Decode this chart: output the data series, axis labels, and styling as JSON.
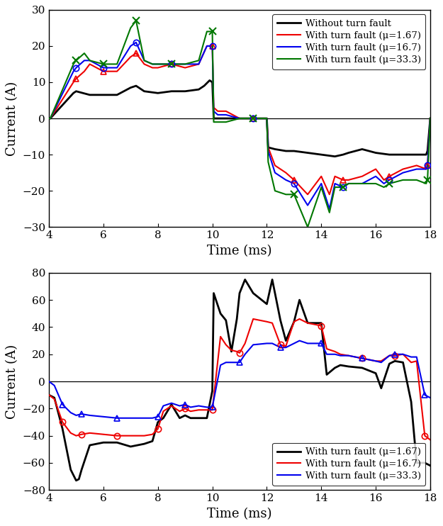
{
  "top_plot": {
    "xlim": [
      4,
      18
    ],
    "ylim": [
      -30,
      30
    ],
    "yticks": [
      -30,
      -20,
      -10,
      0,
      10,
      20,
      30
    ],
    "xticks": [
      4,
      6,
      8,
      10,
      12,
      14,
      16,
      18
    ],
    "xlabel": "Time (ms)",
    "ylabel": "Current (A)",
    "legend_labels": [
      "Without turn fault",
      "With turn fault (μ=1.67)",
      "With turn fault (μ=16.7)",
      "With turn fault (μ=33.3)"
    ],
    "series": {
      "black": {
        "x": [
          4.0,
          4.05,
          4.9,
          5.0,
          5.5,
          6.0,
          6.5,
          7.0,
          7.2,
          7.5,
          8.0,
          8.5,
          9.0,
          9.5,
          9.7,
          9.9,
          10.0,
          10.05,
          11.0,
          11.5,
          12.0,
          12.05,
          12.3,
          12.7,
          13.0,
          13.5,
          14.0,
          14.5,
          14.8,
          15.0,
          15.5,
          16.0,
          16.5,
          17.0,
          17.5,
          17.85,
          17.9,
          18.0
        ],
        "y": [
          0,
          0,
          7,
          7.5,
          6.5,
          6.5,
          6.5,
          8.5,
          9,
          7.5,
          7.0,
          7.5,
          7.5,
          8,
          9,
          10.5,
          10,
          0,
          0,
          0,
          0,
          -8,
          -8.5,
          -9,
          -9,
          -9.5,
          -10,
          -10.5,
          -10,
          -9.5,
          -8.5,
          -9.5,
          -10,
          -10,
          -10,
          -10,
          -9,
          0
        ]
      },
      "red": {
        "x": [
          4.0,
          4.05,
          4.9,
          5.0,
          5.3,
          5.5,
          6.0,
          6.5,
          7.0,
          7.2,
          7.5,
          7.8,
          8.0,
          8.5,
          9.0,
          9.5,
          9.8,
          10.0,
          10.05,
          10.2,
          10.5,
          11.0,
          11.5,
          12.0,
          12.05,
          12.3,
          12.7,
          13.0,
          13.5,
          14.0,
          14.3,
          14.5,
          14.8,
          15.0,
          15.5,
          16.0,
          16.3,
          16.5,
          17.0,
          17.5,
          17.85,
          17.9,
          18.0
        ],
        "y": [
          0,
          0,
          10,
          11,
          13,
          15,
          13,
          13,
          17,
          18,
          15,
          14,
          14,
          15,
          14,
          15,
          20,
          20,
          3,
          2,
          2,
          0,
          0,
          0,
          -8,
          -13,
          -15,
          -17,
          -21,
          -16,
          -21,
          -16,
          -17,
          -17,
          -16,
          -14,
          -17,
          -16,
          -14,
          -13,
          -14,
          -13,
          0
        ]
      },
      "blue": {
        "x": [
          4.0,
          4.05,
          4.9,
          5.0,
          5.3,
          5.5,
          6.0,
          6.5,
          7.0,
          7.2,
          7.5,
          7.8,
          8.0,
          8.5,
          9.0,
          9.5,
          9.8,
          10.0,
          10.05,
          10.2,
          10.5,
          11.0,
          11.5,
          12.0,
          12.05,
          12.3,
          12.7,
          13.0,
          13.5,
          14.0,
          14.3,
          14.5,
          14.8,
          15.0,
          15.5,
          16.0,
          16.3,
          16.5,
          17.0,
          17.5,
          17.85,
          17.9,
          18.0
        ],
        "y": [
          0,
          0,
          13,
          14,
          16,
          16,
          14,
          14,
          20,
          21,
          16,
          15,
          15,
          15,
          15,
          15,
          20,
          20,
          2,
          1,
          1,
          0,
          0,
          0,
          -9,
          -15,
          -17,
          -18,
          -24,
          -18,
          -25,
          -18,
          -19,
          -18,
          -18,
          -16,
          -18,
          -17,
          -15,
          -14,
          -14,
          -13,
          0
        ]
      },
      "green": {
        "x": [
          4.0,
          4.05,
          4.9,
          5.0,
          5.3,
          5.5,
          6.0,
          6.5,
          7.0,
          7.2,
          7.5,
          7.8,
          8.0,
          8.5,
          9.0,
          9.5,
          9.8,
          10.0,
          10.05,
          10.2,
          10.5,
          11.0,
          11.5,
          12.0,
          12.05,
          12.3,
          12.7,
          13.0,
          13.5,
          14.0,
          14.3,
          14.5,
          14.8,
          15.0,
          15.5,
          16.0,
          16.3,
          16.5,
          17.0,
          17.5,
          17.85,
          17.9,
          18.0
        ],
        "y": [
          0,
          0,
          15,
          16,
          18,
          16,
          15,
          15,
          25,
          27,
          16,
          15,
          15,
          15,
          15,
          16,
          24,
          24,
          -1,
          -1,
          -1,
          0,
          0,
          0,
          -12,
          -20,
          -21,
          -21,
          -30,
          -19,
          -26,
          -19,
          -19,
          -18,
          -18,
          -18,
          -19,
          -18,
          -17,
          -17,
          -18,
          -17,
          0
        ]
      }
    }
  },
  "bottom_plot": {
    "xlim": [
      4,
      18
    ],
    "ylim": [
      -80,
      80
    ],
    "yticks": [
      -80,
      -60,
      -40,
      -20,
      0,
      20,
      40,
      60,
      80
    ],
    "xticks": [
      4,
      6,
      8,
      10,
      12,
      14,
      16,
      18
    ],
    "xlabel": "Time (ms)",
    "ylabel": "Current (A)",
    "legend_labels": [
      "With turn fault (μ=1.67)",
      "With turn fault (μ=16.7)",
      "With turn fault (μ=33.3)"
    ],
    "series": {
      "black": {
        "x": [
          4.0,
          4.2,
          4.5,
          4.8,
          5.0,
          5.1,
          5.2,
          5.5,
          6.0,
          6.5,
          7.0,
          7.5,
          7.8,
          8.0,
          8.2,
          8.5,
          8.8,
          9.0,
          9.2,
          9.5,
          9.8,
          10.0,
          10.05,
          10.3,
          10.5,
          10.7,
          10.9,
          11.0,
          11.2,
          11.5,
          12.0,
          12.2,
          12.5,
          12.7,
          13.0,
          13.2,
          13.5,
          14.0,
          14.2,
          14.5,
          14.7,
          15.0,
          15.5,
          16.0,
          16.2,
          16.5,
          16.7,
          17.0,
          17.3,
          17.5,
          17.8,
          18.0
        ],
        "y": [
          -10,
          -12,
          -35,
          -65,
          -73,
          -72,
          -65,
          -47,
          -45,
          -45,
          -48,
          -46,
          -44,
          -30,
          -27,
          -17,
          -27,
          -25,
          -27,
          -27,
          -27,
          -7,
          65,
          50,
          45,
          22,
          46,
          65,
          75,
          65,
          57,
          75,
          45,
          30,
          44,
          60,
          43,
          43,
          5,
          10,
          12,
          11,
          10,
          6,
          -5,
          13,
          15,
          14,
          -15,
          -60,
          -60,
          -62
        ]
      },
      "red": {
        "x": [
          4.0,
          4.2,
          4.5,
          4.8,
          5.0,
          5.2,
          5.5,
          6.0,
          6.5,
          7.0,
          7.5,
          7.8,
          8.0,
          8.2,
          8.5,
          8.8,
          9.0,
          9.2,
          9.5,
          9.8,
          10.0,
          10.3,
          10.5,
          10.7,
          10.9,
          11.0,
          11.2,
          11.5,
          12.0,
          12.2,
          12.5,
          12.7,
          13.0,
          13.2,
          13.5,
          14.0,
          14.2,
          14.5,
          14.7,
          15.0,
          15.5,
          16.0,
          16.2,
          16.5,
          16.7,
          17.0,
          17.3,
          17.5,
          17.8,
          18.0
        ],
        "y": [
          -10,
          -13,
          -30,
          -38,
          -40,
          -39,
          -38,
          -39,
          -40,
          -40,
          -40,
          -39,
          -35,
          -22,
          -18,
          -22,
          -20,
          -22,
          -21,
          -21,
          -21,
          33,
          27,
          23,
          22,
          21,
          28,
          46,
          44,
          43,
          27,
          26,
          44,
          46,
          43,
          41,
          24,
          22,
          20,
          19,
          17,
          15,
          15,
          19,
          19,
          20,
          14,
          15,
          -40,
          -43
        ]
      },
      "blue": {
        "x": [
          4.0,
          4.2,
          4.5,
          4.8,
          5.0,
          5.2,
          5.5,
          6.0,
          6.5,
          7.0,
          7.5,
          7.8,
          8.0,
          8.2,
          8.5,
          8.8,
          9.0,
          9.2,
          9.5,
          9.8,
          10.0,
          10.3,
          10.5,
          10.7,
          10.9,
          11.0,
          11.2,
          11.5,
          12.0,
          12.2,
          12.5,
          12.7,
          13.0,
          13.2,
          13.5,
          14.0,
          14.2,
          14.5,
          14.7,
          15.0,
          15.5,
          16.0,
          16.2,
          16.5,
          16.7,
          17.0,
          17.3,
          17.5,
          17.8,
          18.0
        ],
        "y": [
          0,
          -3,
          -17,
          -23,
          -25,
          -24,
          -25,
          -26,
          -27,
          -27,
          -27,
          -27,
          -26,
          -18,
          -16,
          -18,
          -17,
          -19,
          -18,
          -19,
          -19,
          12,
          14,
          14,
          14,
          14,
          20,
          27,
          28,
          28,
          25,
          25,
          28,
          30,
          28,
          28,
          20,
          20,
          19,
          19,
          17,
          15,
          14,
          19,
          20,
          20,
          18,
          18,
          -10,
          -12
        ]
      }
    }
  },
  "colors": {
    "black": "#000000",
    "red": "#ee0000",
    "blue": "#0000ee",
    "green": "#007700"
  },
  "top_marker_indices_red": [
    3,
    6,
    9,
    13,
    17,
    22,
    27,
    32,
    37,
    41
  ],
  "top_marker_indices_blue": [
    3,
    6,
    9,
    13,
    17,
    22,
    27,
    32,
    37,
    41
  ],
  "top_marker_indices_green": [
    3,
    6,
    9,
    13,
    17,
    22,
    27,
    32,
    37,
    41
  ],
  "bot_marker_indices_red": [
    2,
    5,
    8,
    12,
    16,
    20,
    25,
    30,
    35,
    40,
    44,
    48
  ],
  "bot_marker_indices_blue": [
    2,
    5,
    8,
    12,
    16,
    20,
    25,
    30,
    35,
    40,
    44,
    48
  ],
  "linewidth": 1.5,
  "font_family": "DejaVu Serif",
  "axis_label_fontsize": 13,
  "tick_fontsize": 11,
  "legend_fontsize": 9.5
}
